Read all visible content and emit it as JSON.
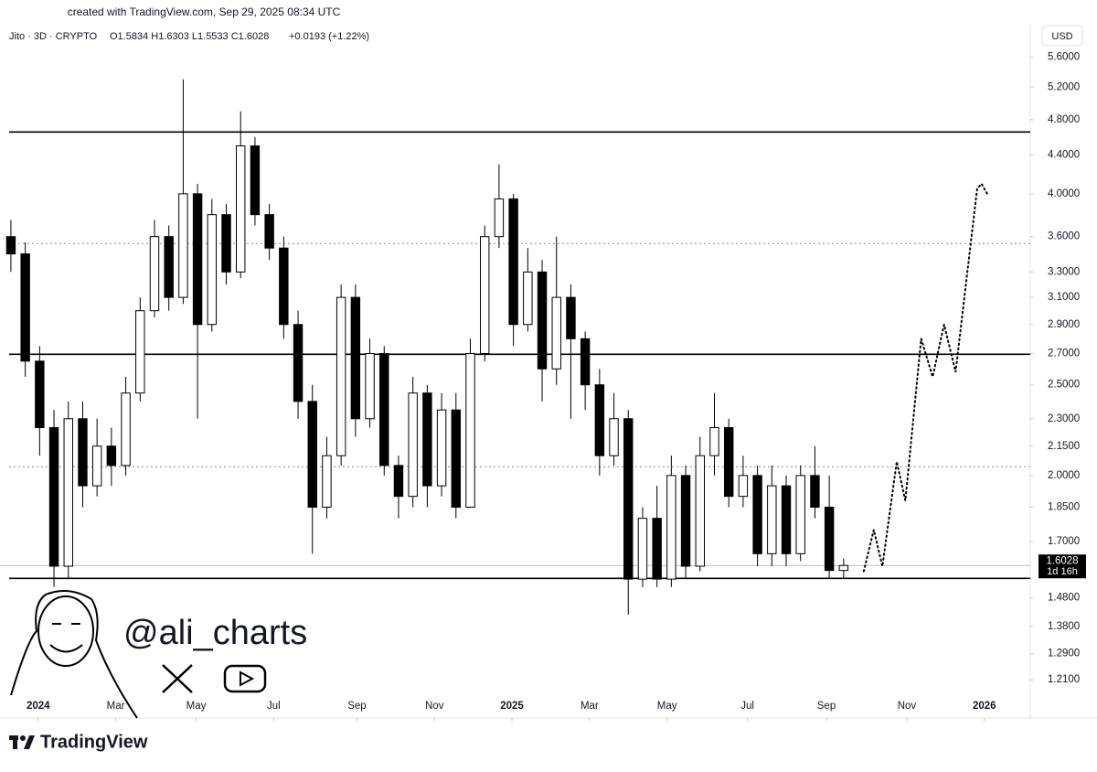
{
  "chart_data": {
    "type": "candlestick",
    "credit": "created with TradingView.com, Sep 29, 2025 08:34 UTC",
    "title": "Jito · 3D · CRYPTO",
    "ohlc_text": "O1.5834 H1.6303 L1.5533 C1.6028",
    "change_text": "+0.0193 (+1.22%)",
    "currency": "USD",
    "countdown": "1d 16h",
    "watermark": "@ali_charts",
    "brand": "TradingView",
    "log_scale": true,
    "up_color": "#ffffff",
    "down_color": "#000000",
    "open": [
      3.6,
      3.45,
      2.65,
      2.25,
      1.6,
      2.3,
      1.95,
      2.15,
      2.05,
      2.45,
      3.0,
      3.6,
      3.1,
      4.0,
      2.9,
      3.8,
      3.3,
      4.5,
      3.8,
      3.5,
      2.9,
      2.4,
      1.85,
      2.1,
      3.1,
      2.3,
      2.7,
      2.05,
      1.9,
      2.45,
      1.95,
      2.35,
      1.85,
      2.7,
      3.6,
      3.95,
      2.9,
      3.3,
      2.6,
      3.1,
      2.8,
      2.5,
      2.1,
      2.3,
      1.55,
      1.8,
      1.55,
      2.0,
      1.6,
      2.1,
      2.25,
      1.9,
      2.0,
      1.65,
      1.95,
      1.65,
      2.0,
      1.85,
      1.5834
    ],
    "high": [
      3.75,
      3.55,
      2.75,
      2.35,
      2.4,
      2.4,
      2.3,
      2.25,
      2.55,
      3.1,
      3.75,
      3.7,
      5.3,
      4.1,
      3.95,
      3.9,
      4.9,
      4.6,
      3.9,
      3.6,
      3.0,
      2.5,
      2.2,
      3.2,
      3.2,
      2.8,
      2.75,
      2.1,
      2.55,
      2.5,
      2.45,
      2.45,
      2.8,
      3.7,
      4.3,
      4.0,
      3.5,
      3.4,
      3.6,
      3.2,
      2.85,
      2.6,
      2.45,
      2.35,
      1.85,
      1.95,
      2.1,
      2.05,
      2.2,
      2.45,
      2.3,
      2.1,
      2.05,
      2.05,
      2.0,
      2.05,
      2.15,
      2.0,
      1.6303
    ],
    "low": [
      3.3,
      2.55,
      2.1,
      1.52,
      1.55,
      1.85,
      1.9,
      1.95,
      2.0,
      2.4,
      2.95,
      3.0,
      3.05,
      2.3,
      2.85,
      3.2,
      3.25,
      3.7,
      3.4,
      2.8,
      2.3,
      1.65,
      1.8,
      2.05,
      2.2,
      2.25,
      2.0,
      1.8,
      1.85,
      1.85,
      1.9,
      1.8,
      1.85,
      2.65,
      3.5,
      2.75,
      2.85,
      2.4,
      2.5,
      2.3,
      2.35,
      2.0,
      2.05,
      1.42,
      1.52,
      1.52,
      1.52,
      1.55,
      1.58,
      2.0,
      1.85,
      1.85,
      1.6,
      1.6,
      1.6,
      1.62,
      1.8,
      1.55,
      1.5533
    ],
    "close": [
      3.45,
      2.65,
      2.25,
      1.6,
      2.3,
      1.95,
      2.15,
      2.05,
      2.45,
      3.0,
      3.6,
      3.1,
      4.0,
      2.9,
      3.8,
      3.3,
      4.5,
      3.8,
      3.5,
      2.9,
      2.4,
      1.85,
      2.1,
      3.1,
      2.3,
      2.7,
      2.05,
      1.9,
      2.45,
      1.95,
      2.35,
      1.85,
      2.7,
      3.6,
      3.95,
      2.9,
      3.3,
      2.6,
      3.1,
      2.8,
      2.5,
      2.1,
      2.3,
      1.55,
      1.8,
      1.55,
      2.0,
      1.6,
      2.1,
      2.25,
      1.9,
      2.0,
      1.65,
      1.95,
      1.65,
      2.0,
      1.85,
      1.5835,
      1.6028
    ],
    "levels": [
      {
        "value": 4.657,
        "style": "solid"
      },
      {
        "value": 3.539,
        "style": "dotted"
      },
      {
        "value": 2.695,
        "style": "solid"
      },
      {
        "value": 2.044,
        "style": "dotted"
      },
      {
        "value": 1.553,
        "style": "solid"
      }
    ],
    "projection": {
      "x": [
        59.4,
        60.1,
        60.7,
        61.7,
        62.3,
        63.4,
        64.2,
        65.0,
        65.8,
        67.3,
        67.6,
        68.0
      ],
      "y": [
        1.58,
        1.75,
        1.6,
        2.07,
        1.88,
        2.8,
        2.55,
        2.9,
        2.58,
        4.05,
        4.1,
        4.0
      ]
    },
    "xlim": [
      -0.76,
      71
    ],
    "xticks": [
      {
        "value": 1.9,
        "label": "2024"
      },
      {
        "value": 7.3,
        "label": "Mar"
      },
      {
        "value": 12.9,
        "label": "May"
      },
      {
        "value": 18.3,
        "label": "Jul"
      },
      {
        "value": 24.1,
        "label": "Sep"
      },
      {
        "value": 29.5,
        "label": "Nov"
      },
      {
        "value": 34.9,
        "label": "2025"
      },
      {
        "value": 40.3,
        "label": "Mar"
      },
      {
        "value": 45.7,
        "label": "May"
      },
      {
        "value": 51.3,
        "label": "Jul"
      },
      {
        "value": 56.8,
        "label": "Sep"
      },
      {
        "value": 62.4,
        "label": "Nov"
      },
      {
        "value": 67.8,
        "label": "2026"
      }
    ],
    "ylim": [
      1.165,
      6.05
    ],
    "yticks": [
      {
        "value": 5.6,
        "label": "5.6000"
      },
      {
        "value": 5.2,
        "label": "5.2000"
      },
      {
        "value": 4.8,
        "label": "4.8000"
      },
      {
        "value": 4.4,
        "label": "4.4000"
      },
      {
        "value": 4.0,
        "label": "4.0000"
      },
      {
        "value": 3.6,
        "label": "3.6000"
      },
      {
        "value": 3.3,
        "label": "3.3000"
      },
      {
        "value": 3.1,
        "label": "3.1000"
      },
      {
        "value": 2.9,
        "label": "2.9000"
      },
      {
        "value": 2.7,
        "label": "2.7000"
      },
      {
        "value": 2.5,
        "label": "2.5000"
      },
      {
        "value": 2.3,
        "label": "2.3000"
      },
      {
        "value": 2.15,
        "label": "2.1500"
      },
      {
        "value": 2.0,
        "label": "2.0000"
      },
      {
        "value": 1.85,
        "label": "1.8500"
      },
      {
        "value": 1.7,
        "label": "1.7000"
      },
      {
        "value": 1.48,
        "label": "1.4800"
      },
      {
        "value": 1.38,
        "label": "1.3800"
      },
      {
        "value": 1.29,
        "label": "1.2900"
      },
      {
        "value": 1.21,
        "label": "1.2100"
      }
    ]
  }
}
